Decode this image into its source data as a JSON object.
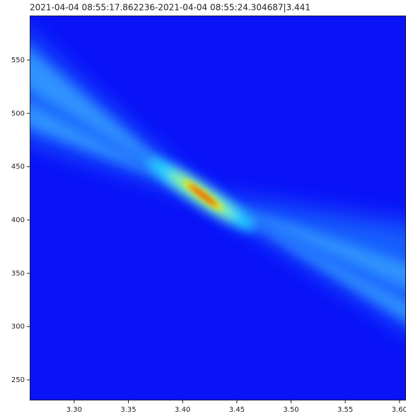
{
  "chart_data": {
    "type": "heatmap",
    "title": "2021-04-04 08:55:17.862236-2021-04-04 08:55:24.304687|3.441",
    "xlim": [
      3.259,
      3.606
    ],
    "ylim": [
      230.7,
      591.8
    ],
    "xticks": [
      {
        "value": 3.3,
        "label": "3.30"
      },
      {
        "value": 3.35,
        "label": "3.35"
      },
      {
        "value": 3.4,
        "label": "3.40"
      },
      {
        "value": 3.45,
        "label": "3.45"
      },
      {
        "value": 3.5,
        "label": "3.50"
      },
      {
        "value": 3.55,
        "label": "3.55"
      },
      {
        "value": 3.6,
        "label": "3.60"
      }
    ],
    "yticks": [
      250,
      300,
      350,
      400,
      450,
      500,
      550
    ]
  }
}
